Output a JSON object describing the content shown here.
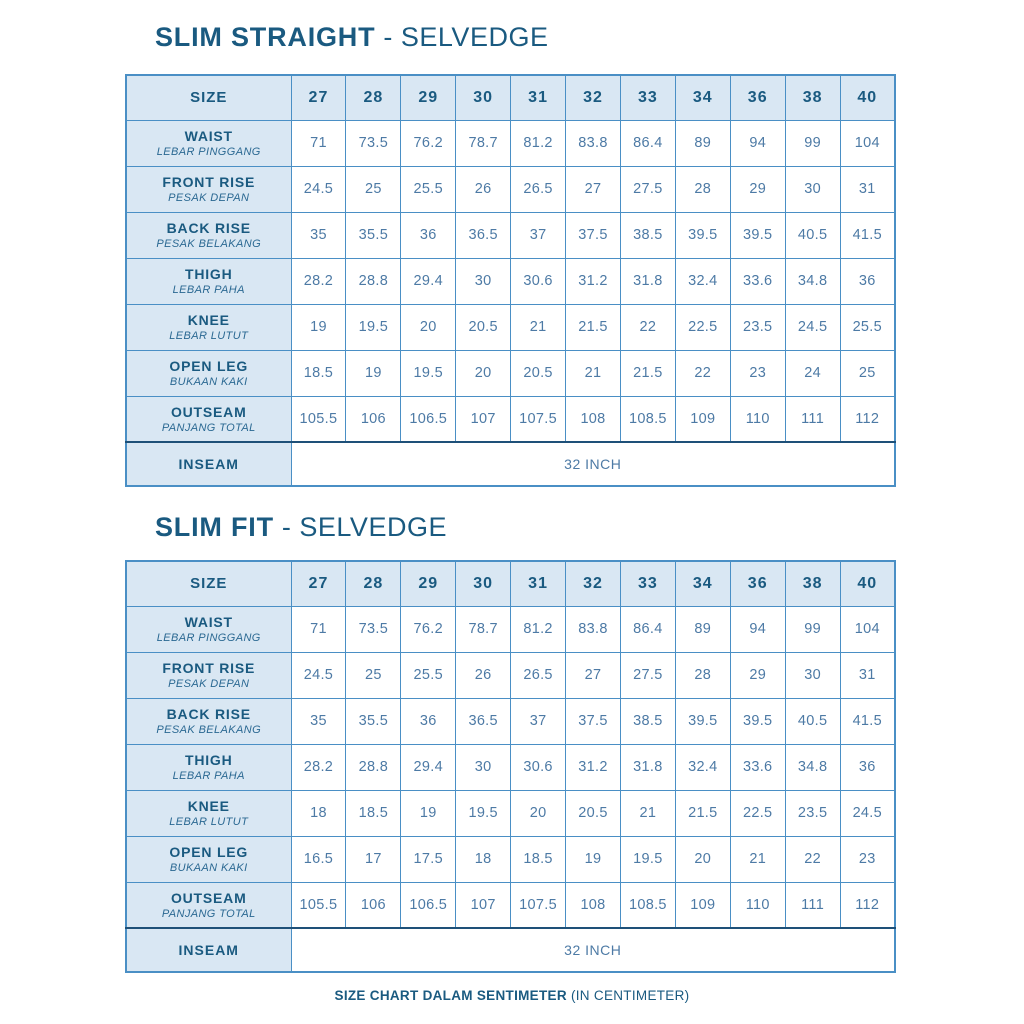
{
  "page": {
    "footer": {
      "bold": "SIZE CHART DALAM SENTIMETER",
      "regular": "(IN CENTIMETER)"
    },
    "colors": {
      "title_text": "#1a5a80",
      "sublabel_text": "#2a6892",
      "value_text": "#4d7aa5",
      "grid_border": "#4a8fc5",
      "divider_dark": "#1e5078",
      "shaded_cell_bg": "#d9e7f3"
    }
  },
  "tables": [
    {
      "title_bold": "SLIM STRAIGHT",
      "title_regular": "- SELVEDGE",
      "size_label": "SIZE",
      "sizes": [
        "27",
        "28",
        "29",
        "30",
        "31",
        "32",
        "33",
        "34",
        "36",
        "38",
        "40"
      ],
      "rows": [
        {
          "label": "WAIST",
          "sublabel": "LEBAR PINGGANG",
          "values": [
            "71",
            "73.5",
            "76.2",
            "78.7",
            "81.2",
            "83.8",
            "86.4",
            "89",
            "94",
            "99",
            "104"
          ]
        },
        {
          "label": "FRONT RISE",
          "sublabel": "PESAK DEPAN",
          "values": [
            "24.5",
            "25",
            "25.5",
            "26",
            "26.5",
            "27",
            "27.5",
            "28",
            "29",
            "30",
            "31"
          ]
        },
        {
          "label": "BACK RISE",
          "sublabel": "PESAK BELAKANG",
          "values": [
            "35",
            "35.5",
            "36",
            "36.5",
            "37",
            "37.5",
            "38.5",
            "39.5",
            "39.5",
            "40.5",
            "41.5"
          ]
        },
        {
          "label": "THIGH",
          "sublabel": "LEBAR PAHA",
          "values": [
            "28.2",
            "28.8",
            "29.4",
            "30",
            "30.6",
            "31.2",
            "31.8",
            "32.4",
            "33.6",
            "34.8",
            "36"
          ]
        },
        {
          "label": "KNEE",
          "sublabel": "LEBAR LUTUT",
          "values": [
            "19",
            "19.5",
            "20",
            "20.5",
            "21",
            "21.5",
            "22",
            "22.5",
            "23.5",
            "24.5",
            "25.5"
          ]
        },
        {
          "label": "OPEN LEG",
          "sublabel": "BUKAAN KAKI",
          "values": [
            "18.5",
            "19",
            "19.5",
            "20",
            "20.5",
            "21",
            "21.5",
            "22",
            "23",
            "24",
            "25"
          ]
        },
        {
          "label": "OUTSEAM",
          "sublabel": "PANJANG TOTAL",
          "values": [
            "105.5",
            "106",
            "106.5",
            "107",
            "107.5",
            "108",
            "108.5",
            "109",
            "110",
            "111",
            "112"
          ]
        }
      ],
      "inseam_label": "INSEAM",
      "inseam_value": "32 INCH"
    },
    {
      "title_bold": "SLIM FIT",
      "title_regular": "- SELVEDGE",
      "size_label": "SIZE",
      "sizes": [
        "27",
        "28",
        "29",
        "30",
        "31",
        "32",
        "33",
        "34",
        "36",
        "38",
        "40"
      ],
      "rows": [
        {
          "label": "WAIST",
          "sublabel": "LEBAR PINGGANG",
          "values": [
            "71",
            "73.5",
            "76.2",
            "78.7",
            "81.2",
            "83.8",
            "86.4",
            "89",
            "94",
            "99",
            "104"
          ]
        },
        {
          "label": "FRONT RISE",
          "sublabel": "PESAK DEPAN",
          "values": [
            "24.5",
            "25",
            "25.5",
            "26",
            "26.5",
            "27",
            "27.5",
            "28",
            "29",
            "30",
            "31"
          ]
        },
        {
          "label": "BACK RISE",
          "sublabel": "PESAK BELAKANG",
          "values": [
            "35",
            "35.5",
            "36",
            "36.5",
            "37",
            "37.5",
            "38.5",
            "39.5",
            "39.5",
            "40.5",
            "41.5"
          ]
        },
        {
          "label": "THIGH",
          "sublabel": "LEBAR PAHA",
          "values": [
            "28.2",
            "28.8",
            "29.4",
            "30",
            "30.6",
            "31.2",
            "31.8",
            "32.4",
            "33.6",
            "34.8",
            "36"
          ]
        },
        {
          "label": "KNEE",
          "sublabel": "LEBAR LUTUT",
          "values": [
            "18",
            "18.5",
            "19",
            "19.5",
            "20",
            "20.5",
            "21",
            "21.5",
            "22.5",
            "23.5",
            "24.5"
          ]
        },
        {
          "label": "OPEN LEG",
          "sublabel": "BUKAAN KAKI",
          "values": [
            "16.5",
            "17",
            "17.5",
            "18",
            "18.5",
            "19",
            "19.5",
            "20",
            "21",
            "22",
            "23"
          ]
        },
        {
          "label": "OUTSEAM",
          "sublabel": "PANJANG TOTAL",
          "values": [
            "105.5",
            "106",
            "106.5",
            "107",
            "107.5",
            "108",
            "108.5",
            "109",
            "110",
            "111",
            "112"
          ]
        }
      ],
      "inseam_label": "INSEAM",
      "inseam_value": "32 INCH"
    }
  ]
}
